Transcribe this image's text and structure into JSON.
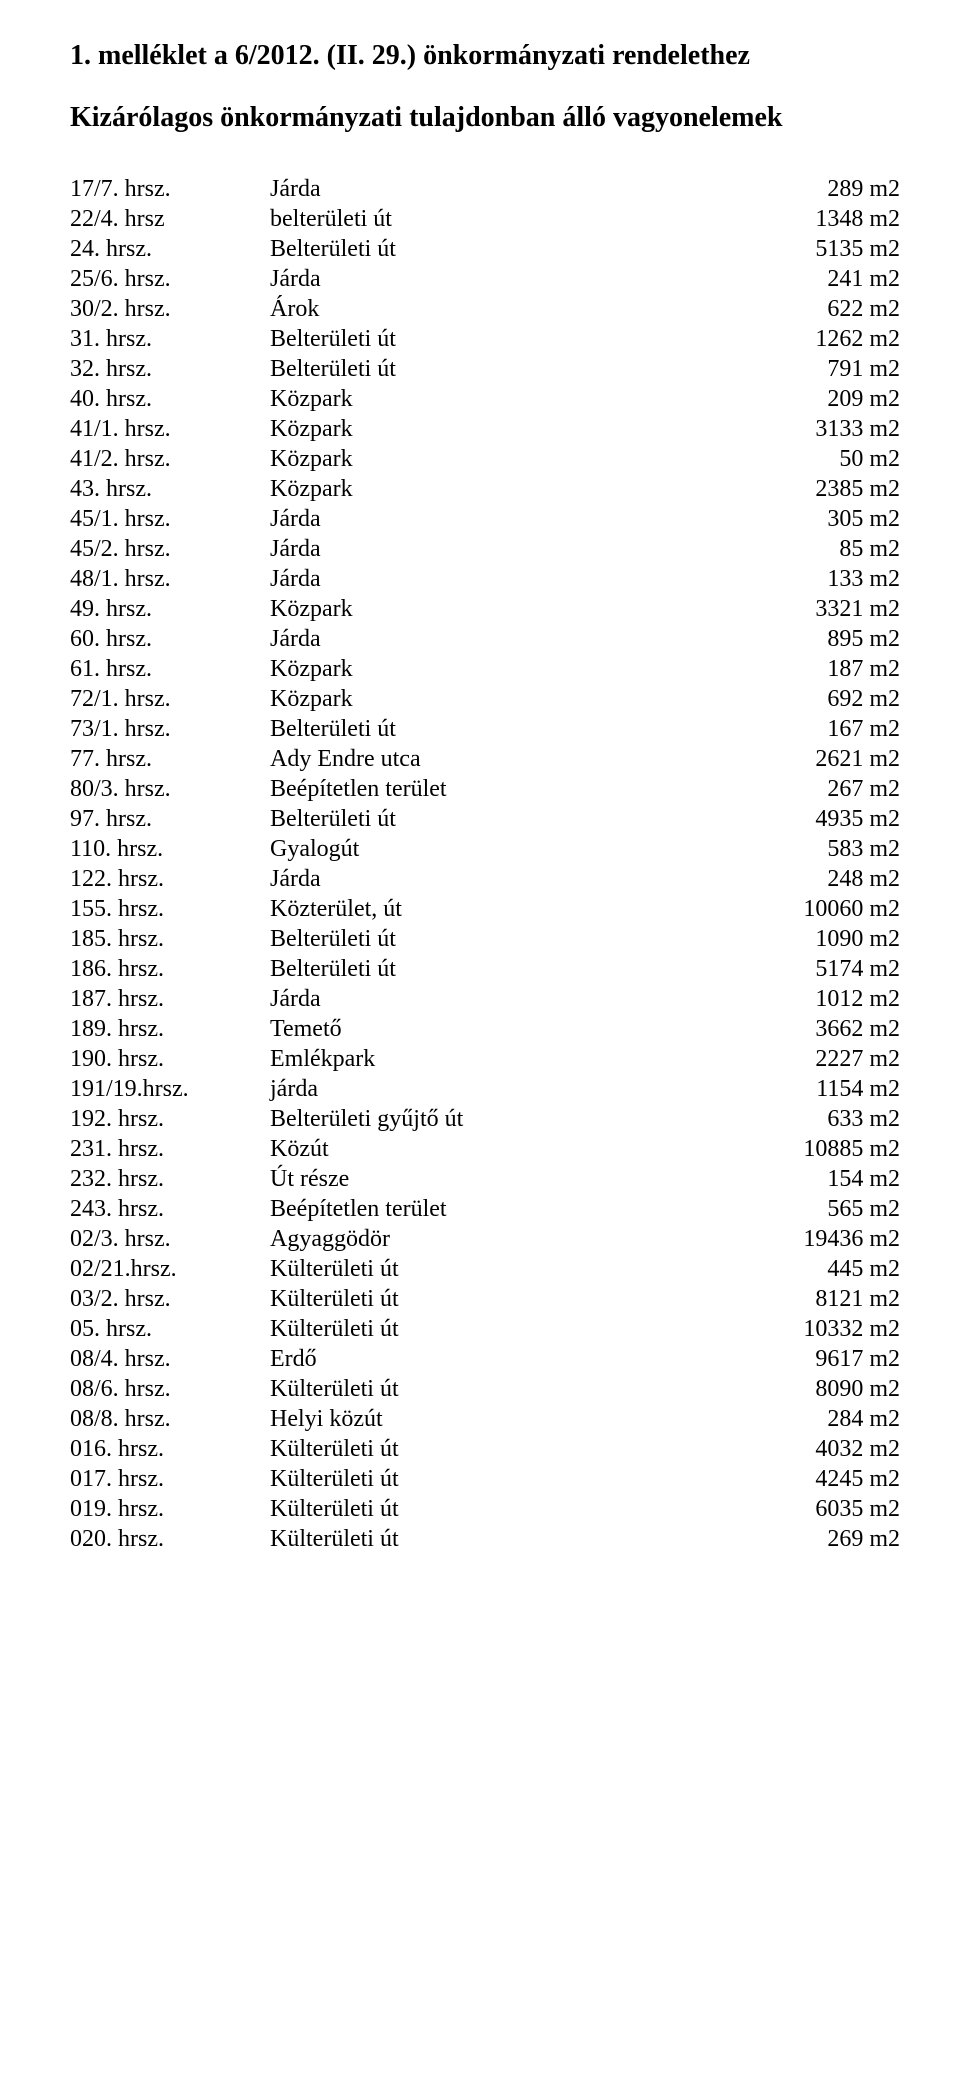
{
  "title": "1. melléklet a 6/2012. (II. 29.) önkormányzati rendelethez",
  "subtitle": "Kizárólagos önkormányzati tulajdonban álló vagyonelemek",
  "rows": [
    {
      "c1": "17/7. hrsz.",
      "c2": "Járda",
      "c3": "289 m2"
    },
    {
      "c1": "22/4. hrsz",
      "c2": "belterületi út",
      "c3": "1348 m2"
    },
    {
      "c1": "24.   hrsz.",
      "c2": "Belterületi út",
      "c3": "5135 m2"
    },
    {
      "c1": "25/6. hrsz.",
      "c2": "Járda",
      "c3": "241 m2"
    },
    {
      "c1": "30/2. hrsz.",
      "c2": "Árok",
      "c3": "622 m2"
    },
    {
      "c1": "31.   hrsz.",
      "c2": "Belterületi út",
      "c3": "1262 m2"
    },
    {
      "c1": "32.   hrsz.",
      "c2": "Belterületi út",
      "c3": "791 m2"
    },
    {
      "c1": "40.   hrsz.",
      "c2": "Közpark",
      "c3": "209 m2"
    },
    {
      "c1": "41/1. hrsz.",
      "c2": "Közpark",
      "c3": "3133 m2"
    },
    {
      "c1": "41/2. hrsz.",
      "c2": "Közpark",
      "c3": "50 m2"
    },
    {
      "c1": "43.   hrsz.",
      "c2": "Közpark",
      "c3": "2385 m2"
    },
    {
      "c1": "45/1. hrsz.",
      "c2": "Járda",
      "c3": "305 m2"
    },
    {
      "c1": "45/2. hrsz.",
      "c2": "Járda",
      "c3": "85 m2"
    },
    {
      "c1": "48/1. hrsz.",
      "c2": "Járda",
      "c3": "133 m2"
    },
    {
      "c1": "49.   hrsz.",
      "c2": "Közpark",
      "c3": "3321 m2"
    },
    {
      "c1": "60.   hrsz.",
      "c2": "Járda",
      "c3": "895 m2"
    },
    {
      "c1": "61.   hrsz.",
      "c2": "Közpark",
      "c3": "187 m2"
    },
    {
      "c1": "72/1. hrsz.",
      "c2": "Közpark",
      "c3": "692 m2"
    },
    {
      "c1": "73/1. hrsz.",
      "c2": "Belterületi út",
      "c3": "167 m2"
    },
    {
      "c1": "77.   hrsz.",
      "c2": "Ady Endre utca",
      "c3": "2621 m2"
    },
    {
      "c1": "80/3. hrsz.",
      "c2": "Beépítetlen terület",
      "c3": "267 m2"
    },
    {
      "c1": "97.   hrsz.",
      "c2": "Belterületi út",
      "c3": "4935 m2"
    },
    {
      "c1": "110.  hrsz.",
      "c2": "Gyalogút",
      "c3": "583 m2"
    },
    {
      "c1": "122.  hrsz.",
      "c2": "Járda",
      "c3": "248 m2"
    },
    {
      "c1": "155.  hrsz.",
      "c2": "Közterület, út",
      "c3": "10060 m2"
    },
    {
      "c1": "185.  hrsz.",
      "c2": "Belterületi út",
      "c3": "1090 m2"
    },
    {
      "c1": "186.  hrsz.",
      "c2": "Belterületi út",
      "c3": "5174 m2"
    },
    {
      "c1": "187.  hrsz.",
      "c2": "Járda",
      "c3": "1012 m2"
    },
    {
      "c1": "189.  hrsz.",
      "c2": "Temető",
      "c3": "3662 m2"
    },
    {
      "c1": "190.  hrsz.",
      "c2": "Emlékpark",
      "c3": "2227 m2"
    },
    {
      "c1": "191/19.hrsz.",
      "c2": "járda",
      "c3": "1154 m2"
    },
    {
      "c1": "192.  hrsz.",
      "c2": "Belterületi gyűjtő út",
      "c3": "633 m2"
    },
    {
      "c1": "231.  hrsz.",
      "c2": "Közút",
      "c3": "10885 m2"
    },
    {
      "c1": "232.  hrsz.",
      "c2": "Út része",
      "c3": "154 m2"
    },
    {
      "c1": "243.  hrsz.",
      "c2": "Beépítetlen terület",
      "c3": "565  m2"
    },
    {
      "c1": "02/3. hrsz.",
      "c2": "Agyaggödör",
      "c3": "19436 m2"
    },
    {
      "c1": "02/21.hrsz.",
      "c2": "Külterületi út",
      "c3": "445 m2"
    },
    {
      "c1": "03/2. hrsz.",
      "c2": "Külterületi út",
      "c3": "8121 m2"
    },
    {
      "c1": "05.   hrsz.",
      "c2": "Külterületi út",
      "c3": "10332 m2"
    },
    {
      "c1": "08/4. hrsz.",
      "c2": "Erdő",
      "c3": "9617 m2"
    },
    {
      "c1": "08/6. hrsz.",
      "c2": "Külterületi út",
      "c3": "8090 m2"
    },
    {
      "c1": "08/8. hrsz.",
      "c2": "Helyi közút",
      "c3": "284 m2"
    },
    {
      "c1": "016.  hrsz.",
      "c2": "Külterületi út",
      "c3": "4032 m2"
    },
    {
      "c1": "017.  hrsz.",
      "c2": "Külterületi út",
      "c3": "4245 m2"
    },
    {
      "c1": "019.  hrsz.",
      "c2": "Külterületi út",
      "c3": "6035 m2"
    },
    {
      "c1": "020.  hrsz.",
      "c2": "Külterületi út",
      "c3": "269 m2"
    }
  ]
}
